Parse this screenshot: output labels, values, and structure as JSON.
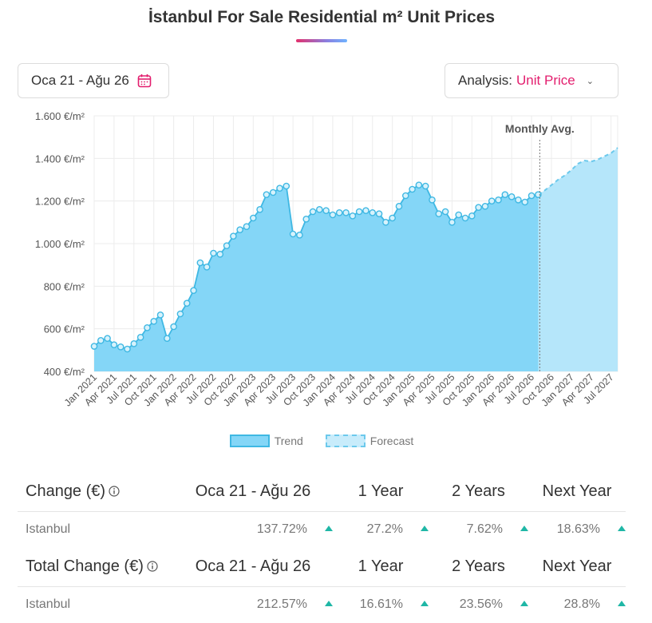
{
  "header": {
    "title": "İstanbul For Sale Residential m² Unit Prices"
  },
  "controls": {
    "date_range": "Oca 21 - Ağu 26",
    "analysis_label": "Analysis:",
    "analysis_value": "Unit Price"
  },
  "chart_data": {
    "type": "area",
    "title": "İstanbul For Sale Residential m² Unit Prices",
    "ylim": [
      400,
      1600
    ],
    "y_ticks": [
      "400 €/m²",
      "600 €/m²",
      "800 €/m²",
      "1.000 €/m²",
      "1.200 €/m²",
      "1.400 €/m²",
      "1.600 €/m²"
    ],
    "x_ticks": [
      "Jan 2021",
      "Apr 2021",
      "Jul 2021",
      "Oct 2021",
      "Jan 2022",
      "Apr 2022",
      "Jul 2022",
      "Oct 2022",
      "Jan 2023",
      "Apr 2023",
      "Jul 2023",
      "Oct 2023",
      "Jan 2024",
      "Apr 2024",
      "Jul 2024",
      "Oct 2024",
      "Jan 2025",
      "Apr 2025",
      "Jul 2025",
      "Oct 2025",
      "Jan 2026",
      "Apr 2026",
      "Jul 2026",
      "Oct 2026",
      "Jan 2027",
      "Apr 2027",
      "Jul 2027"
    ],
    "annotation": "Monthly Avg.",
    "legend": [
      "Trend",
      "Forecast"
    ],
    "series": [
      {
        "name": "Trend",
        "values": [
          518,
          545,
          555,
          525,
          515,
          505,
          530,
          560,
          605,
          635,
          665,
          555,
          610,
          670,
          720,
          780,
          910,
          890,
          955,
          950,
          990,
          1035,
          1065,
          1080,
          1120,
          1160,
          1230,
          1240,
          1260,
          1270,
          1045,
          1040,
          1115,
          1150,
          1160,
          1155,
          1135,
          1145,
          1145,
          1130,
          1150,
          1155,
          1145,
          1140,
          1100,
          1120,
          1175,
          1225,
          1255,
          1275,
          1270,
          1205,
          1140,
          1150,
          1100,
          1135,
          1120,
          1130,
          1170,
          1175,
          1200,
          1205,
          1230,
          1220,
          1205,
          1195,
          1225,
          1230
        ]
      },
      {
        "name": "Forecast",
        "start_index": 67,
        "values": [
          1230,
          1250,
          1275,
          1300,
          1320,
          1345,
          1375,
          1390,
          1385,
          1395,
          1410,
          1425,
          1450
        ]
      }
    ],
    "grid": true
  },
  "stats": {
    "tables": [
      {
        "headers": [
          "Change (€)",
          "Oca 21 - Ağu 26",
          "1 Year",
          "2 Years",
          "Next Year"
        ],
        "row": {
          "label": "Istanbul",
          "values": [
            "137.72%",
            "27.2%",
            "7.62%",
            "18.63%"
          ]
        }
      },
      {
        "headers": [
          "Total Change (€)",
          "Oca 21 - Ağu 26",
          "1 Year",
          "2 Years",
          "Next Year"
        ],
        "row": {
          "label": "Istanbul",
          "values": [
            "212.57%",
            "16.61%",
            "23.56%",
            "28.8%"
          ]
        }
      }
    ]
  },
  "colors": {
    "trend_fill": "#84d6f7",
    "trend_line": "#3fb8e3",
    "forecast_fill": "#b5e6fa",
    "accent": "#e31e6e",
    "up": "#1fb7a6"
  }
}
